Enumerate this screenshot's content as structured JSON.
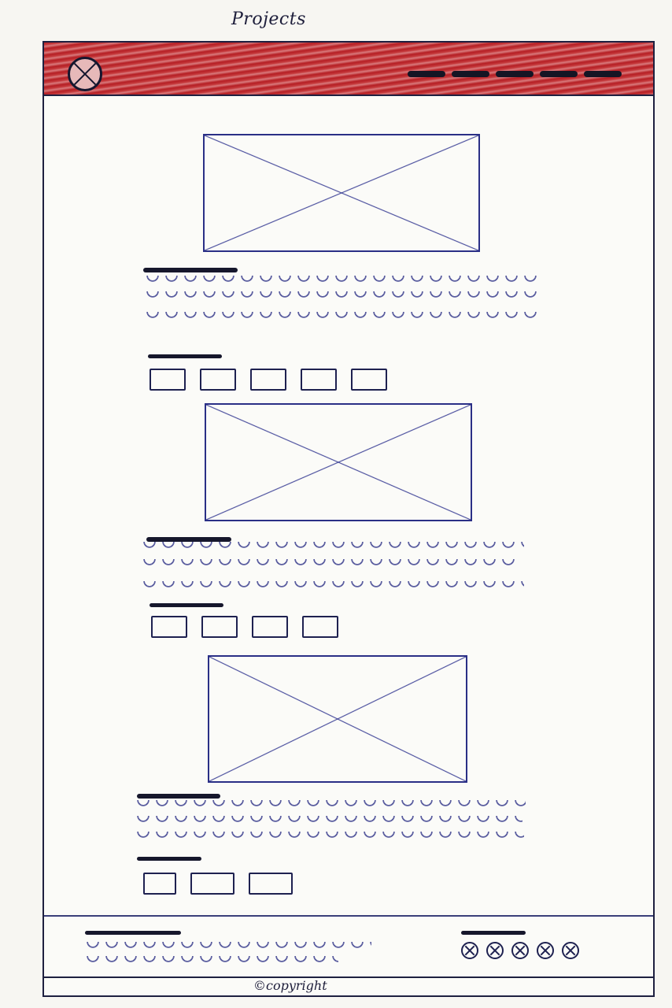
{
  "sheet": {
    "title": "Projects"
  },
  "header": {
    "logo_icon": "image-placeholder-icon",
    "nav_items": 5
  },
  "projects": [
    {
      "thumbnails": 5
    },
    {
      "thumbnails": 4
    },
    {
      "thumbnails": 3
    }
  ],
  "footer": {
    "social_icons": [
      "social-icon",
      "social-icon",
      "social-icon",
      "social-icon",
      "social-icon"
    ],
    "copyright": "©copyright"
  },
  "colors": {
    "header_fill": "#b51d24",
    "ink": "#1f2050",
    "placeholder_stroke": "#2a2f86"
  }
}
